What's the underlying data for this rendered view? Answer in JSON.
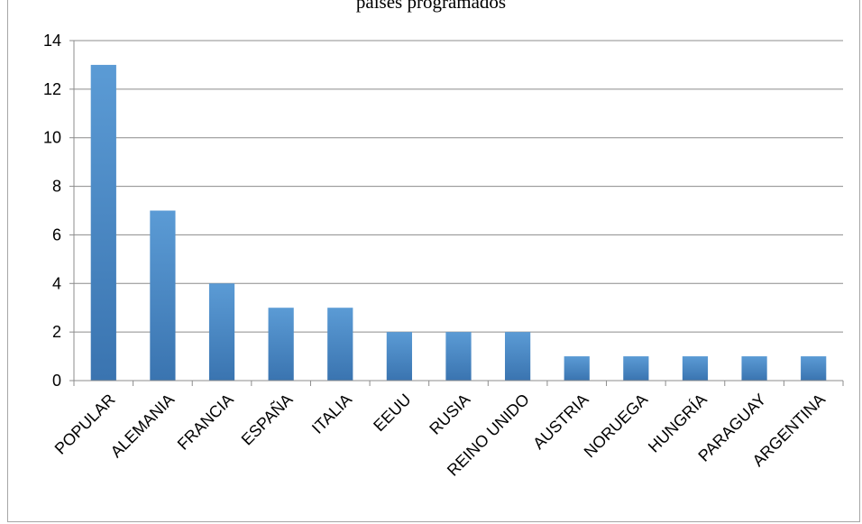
{
  "chart_data": {
    "type": "bar",
    "title": "países programados",
    "xlabel": "",
    "ylabel": "",
    "categories": [
      "POPULAR",
      "ALEMANIA",
      "FRANCIA",
      "ESPAÑA",
      "ITALIA",
      "EEUU",
      "RUSIA",
      "REINO UNIDO",
      "AUSTRIA",
      "NORUEGA",
      "HUNGRÍA",
      "PARAGUAY",
      "ARGENTINA"
    ],
    "values": [
      13,
      7,
      4,
      3,
      3,
      2,
      2,
      2,
      1,
      1,
      1,
      1,
      1
    ],
    "ylim": [
      0,
      14
    ],
    "yticks": [
      0,
      2,
      4,
      6,
      8,
      10,
      12,
      14
    ],
    "grid": true,
    "legend": "none",
    "colors": {
      "bar_top": "#5b9bd5",
      "bar_bottom": "#3a74b0",
      "grid": "#8c8c8c",
      "axis": "#8c8c8c"
    }
  }
}
